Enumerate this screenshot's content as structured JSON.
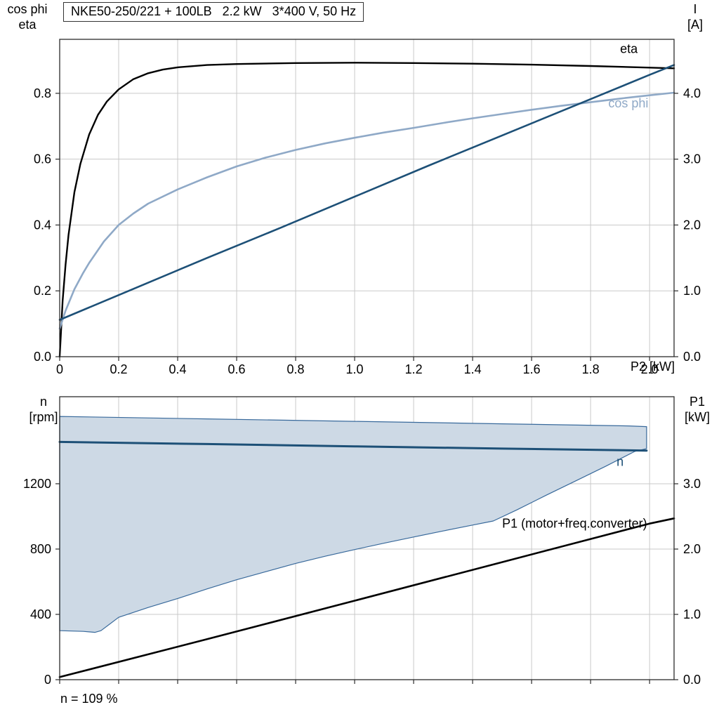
{
  "title_box": "NKE50-250/221 + 100LB   2.2 kW   3*400 V, 50 Hz",
  "labels": {
    "top_left_line1": "cos phi",
    "top_left_line2": "eta",
    "top_right_line1": "I",
    "top_right_line2": "[A]",
    "x_axis": "P2 [kW]",
    "bottom_left_line1": "n",
    "bottom_left_line2": "[rpm]",
    "bottom_right_line1": "P1",
    "bottom_right_line2": "[kW]",
    "footnote": "n = 109 %"
  },
  "colors": {
    "eta": "#000000",
    "cos_phi": "#8fa9c7",
    "current": "#1d5077",
    "speed": "#1d5077",
    "p1": "#000000",
    "band_fill": "#cdd9e5",
    "band_stroke": "#38699b",
    "grid": "#c9c9c9",
    "frame": "#2b2b2b"
  },
  "chart_data": [
    {
      "id": "top",
      "type": "line",
      "title": "NKE50-250/221 + 100LB   2.2 kW   3*400 V, 50 Hz",
      "x_axis": {
        "label": "P2 [kW]",
        "min": 0,
        "max": 2.083,
        "ticks": [
          {
            "v": 0,
            "label": "0"
          },
          {
            "v": 0.2,
            "label": "0.2"
          },
          {
            "v": 0.4,
            "label": "0.4"
          },
          {
            "v": 0.6,
            "label": "0.6"
          },
          {
            "v": 0.8,
            "label": "0.8"
          },
          {
            "v": 1.0,
            "label": "1.0"
          },
          {
            "v": 1.2,
            "label": "1.2"
          },
          {
            "v": 1.4,
            "label": "1.4"
          },
          {
            "v": 1.6,
            "label": "1.6"
          },
          {
            "v": 1.8,
            "label": "1.8"
          },
          {
            "v": 2.0,
            "label": "2.0"
          }
        ]
      },
      "left_axis": {
        "label": "cos phi / eta",
        "min": 0,
        "max": 0.964,
        "ticks": [
          {
            "v": 0,
            "label": "0.0"
          },
          {
            "v": 0.2,
            "label": "0.2"
          },
          {
            "v": 0.4,
            "label": "0.4"
          },
          {
            "v": 0.6,
            "label": "0.6"
          },
          {
            "v": 0.8,
            "label": "0.8"
          }
        ]
      },
      "right_axis": {
        "label": "I [A]",
        "min": 0,
        "max": 4.82,
        "ticks": [
          {
            "v": 0,
            "label": "0.0"
          },
          {
            "v": 1,
            "label": "1.0"
          },
          {
            "v": 2,
            "label": "2.0"
          },
          {
            "v": 3,
            "label": "3.0"
          },
          {
            "v": 4,
            "label": "4.0"
          }
        ]
      },
      "bands": [],
      "series": [
        {
          "name": "eta",
          "axis": "left",
          "color": "#000000",
          "width": 2.4,
          "label": {
            "text": "eta",
            "x": 1.9,
            "y": 0.922,
            "anchor": "start"
          },
          "points": [
            [
              0,
              0
            ],
            [
              0.01,
              0.17
            ],
            [
              0.02,
              0.28
            ],
            [
              0.03,
              0.37
            ],
            [
              0.05,
              0.5
            ],
            [
              0.07,
              0.585
            ],
            [
              0.1,
              0.675
            ],
            [
              0.13,
              0.735
            ],
            [
              0.16,
              0.775
            ],
            [
              0.2,
              0.812
            ],
            [
              0.25,
              0.843
            ],
            [
              0.3,
              0.861
            ],
            [
              0.35,
              0.872
            ],
            [
              0.4,
              0.879
            ],
            [
              0.5,
              0.886
            ],
            [
              0.6,
              0.889
            ],
            [
              0.8,
              0.892
            ],
            [
              1.0,
              0.893
            ],
            [
              1.2,
              0.892
            ],
            [
              1.4,
              0.89
            ],
            [
              1.6,
              0.887
            ],
            [
              1.8,
              0.883
            ],
            [
              2.0,
              0.878
            ],
            [
              2.083,
              0.876
            ]
          ]
        },
        {
          "name": "cos-phi",
          "axis": "left",
          "color": "#8fa9c7",
          "width": 2.6,
          "label": {
            "text": "cos phi",
            "x": 1.86,
            "y": 0.757,
            "anchor": "start"
          },
          "points": [
            [
              0,
              0.085
            ],
            [
              0.02,
              0.14
            ],
            [
              0.05,
              0.205
            ],
            [
              0.08,
              0.255
            ],
            [
              0.1,
              0.285
            ],
            [
              0.15,
              0.35
            ],
            [
              0.2,
              0.4
            ],
            [
              0.25,
              0.435
            ],
            [
              0.3,
              0.465
            ],
            [
              0.4,
              0.508
            ],
            [
              0.5,
              0.545
            ],
            [
              0.6,
              0.578
            ],
            [
              0.7,
              0.605
            ],
            [
              0.8,
              0.628
            ],
            [
              0.9,
              0.648
            ],
            [
              1.0,
              0.665
            ],
            [
              1.1,
              0.681
            ],
            [
              1.2,
              0.695
            ],
            [
              1.3,
              0.71
            ],
            [
              1.4,
              0.724
            ],
            [
              1.5,
              0.737
            ],
            [
              1.6,
              0.75
            ],
            [
              1.7,
              0.762
            ],
            [
              1.8,
              0.773
            ],
            [
              1.9,
              0.784
            ],
            [
              2.0,
              0.794
            ],
            [
              2.083,
              0.802
            ]
          ]
        },
        {
          "name": "current-I",
          "axis": "right",
          "color": "#1d5077",
          "width": 2.6,
          "label": null,
          "points": [
            [
              0,
              0.56
            ],
            [
              0.25,
              1.03
            ],
            [
              0.5,
              1.5
            ],
            [
              0.75,
              1.96
            ],
            [
              1.0,
              2.43
            ],
            [
              1.25,
              2.9
            ],
            [
              1.5,
              3.36
            ],
            [
              1.75,
              3.82
            ],
            [
              2.0,
              4.28
            ],
            [
              2.083,
              4.43
            ]
          ]
        }
      ]
    },
    {
      "id": "bottom",
      "type": "line",
      "title": "",
      "x_axis": {
        "label": "",
        "min": 0,
        "max": 2.083,
        "ticks": [
          {
            "v": 0,
            "label": ""
          },
          {
            "v": 0.2,
            "label": ""
          },
          {
            "v": 0.4,
            "label": ""
          },
          {
            "v": 0.6,
            "label": ""
          },
          {
            "v": 0.8,
            "label": ""
          },
          {
            "v": 1.0,
            "label": ""
          },
          {
            "v": 1.2,
            "label": ""
          },
          {
            "v": 1.4,
            "label": ""
          },
          {
            "v": 1.6,
            "label": ""
          },
          {
            "v": 1.8,
            "label": ""
          },
          {
            "v": 2.0,
            "label": ""
          }
        ]
      },
      "left_axis": {
        "label": "n [rpm]",
        "min": 0,
        "max": 1733,
        "ticks": [
          {
            "v": 0,
            "label": "0"
          },
          {
            "v": 400,
            "label": "400"
          },
          {
            "v": 800,
            "label": "800"
          },
          {
            "v": 1200,
            "label": "1200"
          }
        ]
      },
      "right_axis": {
        "label": "P1 [kW]",
        "min": 0,
        "max": 4.333,
        "ticks": [
          {
            "v": 0,
            "label": "0.0"
          },
          {
            "v": 1,
            "label": "1.0"
          },
          {
            "v": 2,
            "label": "2.0"
          },
          {
            "v": 3,
            "label": "3.0"
          }
        ]
      },
      "bands": [
        {
          "name": "speed-range",
          "axis": "left",
          "fill": "#cdd9e5",
          "stroke": "#38699b",
          "lower": [
            [
              0,
              300
            ],
            [
              0.08,
              296
            ],
            [
              0.12,
              290
            ],
            [
              0.14,
              300
            ],
            [
              0.2,
              382
            ],
            [
              0.3,
              442
            ],
            [
              0.4,
              497
            ],
            [
              0.5,
              556
            ],
            [
              0.6,
              612
            ],
            [
              0.7,
              662
            ],
            [
              0.8,
              712
            ],
            [
              0.9,
              756
            ],
            [
              1.0,
              797
            ],
            [
              1.1,
              836
            ],
            [
              1.2,
              874
            ],
            [
              1.3,
              911
            ],
            [
              1.4,
              947
            ],
            [
              1.47,
              972
            ],
            [
              1.55,
              1040
            ],
            [
              1.65,
              1130
            ],
            [
              1.75,
              1218
            ],
            [
              1.85,
              1306
            ],
            [
              1.95,
              1398
            ],
            [
              1.99,
              1415
            ]
          ],
          "upper": [
            [
              0,
              1612
            ],
            [
              0.5,
              1597
            ],
            [
              1.0,
              1582
            ],
            [
              1.5,
              1567
            ],
            [
              1.93,
              1554
            ],
            [
              1.99,
              1550
            ]
          ]
        }
      ],
      "series": [
        {
          "name": "speed-n",
          "axis": "left",
          "color": "#1d5077",
          "width": 3,
          "label": {
            "text": "n",
            "x": 1.9,
            "y": 1310,
            "anchor": "middle"
          },
          "points": [
            [
              0,
              1456
            ],
            [
              0.5,
              1443
            ],
            [
              1.0,
              1429
            ],
            [
              1.5,
              1415
            ],
            [
              1.99,
              1403
            ]
          ]
        },
        {
          "name": "P1",
          "axis": "right",
          "color": "#000000",
          "width": 2.6,
          "label": {
            "text": "P1 (motor+freq.converter)",
            "x": 1.5,
            "y": 2.33,
            "anchor": "start"
          },
          "points": [
            [
              0,
              0.04
            ],
            [
              0.5,
              0.62
            ],
            [
              1.0,
              1.21
            ],
            [
              1.5,
              1.8
            ],
            [
              2.0,
              2.39
            ],
            [
              2.083,
              2.47
            ]
          ]
        }
      ]
    }
  ]
}
